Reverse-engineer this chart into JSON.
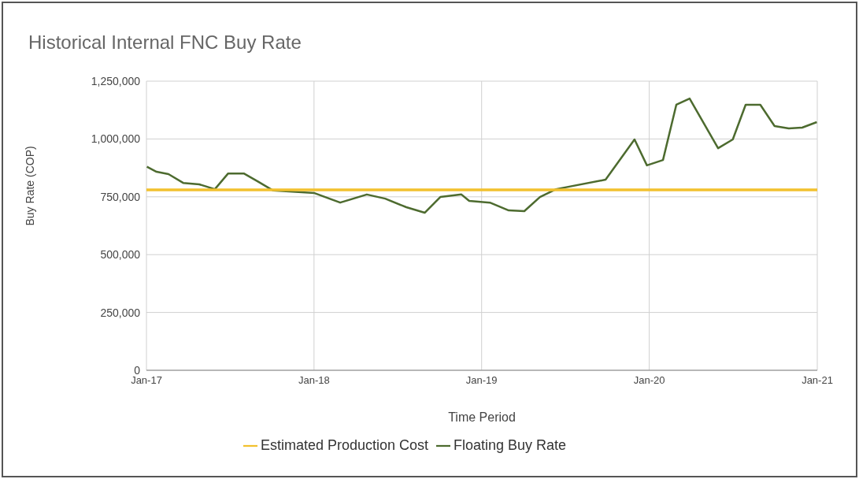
{
  "chart_data": {
    "type": "line",
    "title": "Historical Internal FNC Buy Rate",
    "xlabel": "Time Period",
    "ylabel": "Buy Rate (COP)",
    "xlim": [
      "2017-01-01",
      "2021-01-01"
    ],
    "xticks": [
      {
        "value": "2017-01-01",
        "label": "Jan-17"
      },
      {
        "value": "2018-01-01",
        "label": "Jan-18"
      },
      {
        "value": "2019-01-01",
        "label": "Jan-19"
      },
      {
        "value": "2020-01-01",
        "label": "Jan-20"
      },
      {
        "value": "2021-01-01",
        "label": "Jan-21"
      }
    ],
    "ylim": [
      0,
      1250000
    ],
    "yticks": [
      {
        "value": 0,
        "label": "0"
      },
      {
        "value": 250000,
        "label": "250,000"
      },
      {
        "value": 500000,
        "label": "500,000"
      },
      {
        "value": 750000,
        "label": "750,000"
      },
      {
        "value": 1000000,
        "label": "1,000,000"
      },
      {
        "value": 1250000,
        "label": "1,250,000"
      }
    ],
    "grid": true,
    "legend": "bottom",
    "marker": "none",
    "line_style": "solid",
    "series": [
      {
        "name": "Floating Buy Rate",
        "color": "#4d6b2f",
        "x": [
          "2017-01-02",
          "2017-01-23",
          "2017-02-18",
          "2017-03-22",
          "2017-04-26",
          "2017-05-30",
          "2017-06-28",
          "2017-08-01",
          "2017-08-31",
          "2017-10-04",
          "2018-01-02",
          "2018-02-27",
          "2018-04-26",
          "2018-06-05",
          "2018-07-21",
          "2018-08-30",
          "2018-10-03",
          "2018-11-18",
          "2018-12-05",
          "2019-01-19",
          "2019-03-01",
          "2019-04-04",
          "2019-05-08",
          "2019-06-12",
          "2019-09-28",
          "2019-11-30",
          "2019-12-27",
          "2020-01-31",
          "2020-02-29",
          "2020-03-29",
          "2020-05-30",
          "2020-07-01",
          "2020-07-29",
          "2020-08-30",
          "2020-09-30",
          "2020-10-31",
          "2020-11-29",
          "2020-12-31"
        ],
        "values": [
          880000,
          858000,
          848000,
          810000,
          804000,
          783000,
          851000,
          851000,
          817000,
          777000,
          766000,
          725000,
          760000,
          742000,
          705000,
          681000,
          749000,
          760000,
          732000,
          725000,
          691000,
          688000,
          749000,
          783000,
          824000,
          998000,
          886000,
          909000,
          1148000,
          1175000,
          960000,
          998000,
          1148000,
          1148000,
          1056000,
          1046000,
          1049000,
          1073000
        ]
      },
      {
        "name": "Estimated Production Cost",
        "color": "#f2c12e",
        "x": [
          "2017-01-01",
          "2021-01-01"
        ],
        "values": [
          780000,
          780000
        ]
      }
    ]
  }
}
